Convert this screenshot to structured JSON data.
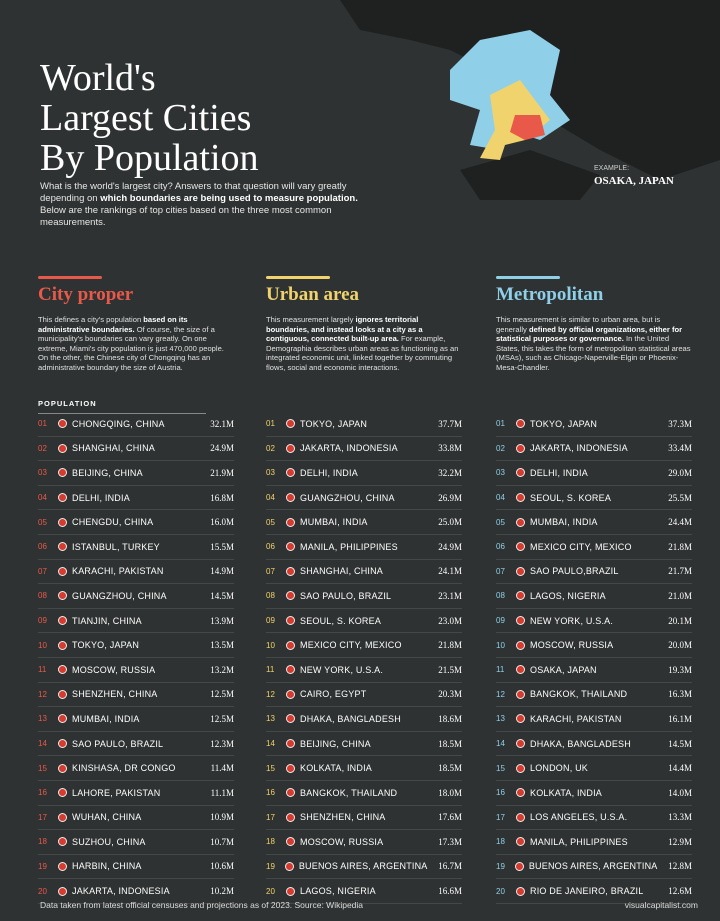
{
  "header": {
    "title_lines": [
      "World's",
      "Largest Cities",
      "By Population"
    ],
    "intro": [
      {
        "text": "What is the world's largest city? Answers to that question will vary greatly depending on "
      },
      {
        "text": "which boundaries are being used to measure population.",
        "strong": true
      },
      {
        "text": " Below are the rankings of top cities based on the three most common measurements."
      }
    ]
  },
  "map": {
    "label": "EXAMPLE:",
    "place": "OSAKA, JAPAN"
  },
  "columns": [
    {
      "title": "City proper",
      "color": "#e8594a",
      "column_label": "POPULATION",
      "description": [
        {
          "text": "This defines a city's population "
        },
        {
          "text": "based on its administrative boundaries.",
          "strong": true
        },
        {
          "text": " Of course, the size of a municipality's boundaries can vary greatly. On one extreme, Miami's city population is just 470,000 people. On the other, the Chinese city of Chongqing has an administrative boundary the size of Austria."
        }
      ],
      "rows": [
        [
          "01",
          "CHONGQING, CHINA",
          "32.1M"
        ],
        [
          "02",
          "SHANGHAI, CHINA",
          "24.9M"
        ],
        [
          "03",
          "BEIJING, CHINA",
          "21.9M"
        ],
        [
          "04",
          "DELHI, INDIA",
          "16.8M"
        ],
        [
          "05",
          "CHENGDU, CHINA",
          "16.0M"
        ],
        [
          "06",
          "ISTANBUL, TURKEY",
          "15.5M"
        ],
        [
          "07",
          "KARACHI, PAKISTAN",
          "14.9M"
        ],
        [
          "08",
          "GUANGZHOU, CHINA",
          "14.5M"
        ],
        [
          "09",
          "TIANJIN, CHINA",
          "13.9M"
        ],
        [
          "10",
          "TOKYO, JAPAN",
          "13.5M"
        ],
        [
          "11",
          "MOSCOW, RUSSIA",
          "13.2M"
        ],
        [
          "12",
          "SHENZHEN, CHINA",
          "12.5M"
        ],
        [
          "13",
          "MUMBAI, INDIA",
          "12.5M"
        ],
        [
          "14",
          "SAO PAULO, BRAZIL",
          "12.3M"
        ],
        [
          "15",
          "KINSHASA, DR CONGO",
          "11.4M"
        ],
        [
          "16",
          "LAHORE, PAKISTAN",
          "11.1M"
        ],
        [
          "17",
          "WUHAN, CHINA",
          "10.9M"
        ],
        [
          "18",
          "SUZHOU, CHINA",
          "10.7M"
        ],
        [
          "19",
          "HARBIN, CHINA",
          "10.6M"
        ],
        [
          "20",
          "JAKARTA, INDONESIA",
          "10.2M"
        ]
      ]
    },
    {
      "title": "Urban area",
      "color": "#f0d36c",
      "description": [
        {
          "text": "This measurement largely "
        },
        {
          "text": "ignores territorial boundaries, and instead looks at a city as a contiguous, connected built-up area.",
          "strong": true
        },
        {
          "text": " For example, Demographia describes urban areas as functioning as an integrated economic unit, linked together by commuting flows, social and economic interactions."
        }
      ],
      "rows": [
        [
          "01",
          "TOKYO, JAPAN",
          "37.7M"
        ],
        [
          "02",
          "JAKARTA, INDONESIA",
          "33.8M"
        ],
        [
          "03",
          "DELHI, INDIA",
          "32.2M"
        ],
        [
          "04",
          "GUANGZHOU, CHINA",
          "26.9M"
        ],
        [
          "05",
          "MUMBAI, INDIA",
          "25.0M"
        ],
        [
          "06",
          "MANILA, PHILIPPINES",
          "24.9M"
        ],
        [
          "07",
          "SHANGHAI, CHINA",
          "24.1M"
        ],
        [
          "08",
          "SAO PAULO, BRAZIL",
          "23.1M"
        ],
        [
          "09",
          "SEOUL, S. KOREA",
          "23.0M"
        ],
        [
          "10",
          "MEXICO CITY, MEXICO",
          "21.8M"
        ],
        [
          "11",
          "NEW YORK, U.S.A.",
          "21.5M"
        ],
        [
          "12",
          "CAIRO, EGYPT",
          "20.3M"
        ],
        [
          "13",
          "DHAKA, BANGLADESH",
          "18.6M"
        ],
        [
          "14",
          "BEIJING, CHINA",
          "18.5M"
        ],
        [
          "15",
          "KOLKATA, INDIA",
          "18.5M"
        ],
        [
          "16",
          "BANGKOK, THAILAND",
          "18.0M"
        ],
        [
          "17",
          "SHENZHEN, CHINA",
          "17.6M"
        ],
        [
          "18",
          "MOSCOW, RUSSIA",
          "17.3M"
        ],
        [
          "19",
          "BUENOS AIRES, ARGENTINA",
          "16.7M"
        ],
        [
          "20",
          "LAGOS, NIGERIA",
          "16.6M"
        ]
      ]
    },
    {
      "title": "Metropolitan",
      "color": "#8fd0e8",
      "description": [
        {
          "text": "This measurement is similar to urban area, but is generally "
        },
        {
          "text": "defined by official organizations, either for statistical purposes or governance.",
          "strong": true
        },
        {
          "text": " In the United States, this takes the form of metropolitan statistical areas (MSAs), such as Chicago-Naperville-Elgin or Phoenix-Mesa-Chandler."
        }
      ],
      "rows": [
        [
          "01",
          "TOKYO, JAPAN",
          "37.3M"
        ],
        [
          "02",
          "JAKARTA, INDONESIA",
          "33.4M"
        ],
        [
          "03",
          "DELHI, INDIA",
          "29.0M"
        ],
        [
          "04",
          "SEOUL, S. KOREA",
          "25.5M"
        ],
        [
          "05",
          "MUMBAI, INDIA",
          "24.4M"
        ],
        [
          "06",
          "MEXICO CITY, MEXICO",
          "21.8M"
        ],
        [
          "07",
          "SAO PAULO,BRAZIL",
          "21.7M"
        ],
        [
          "08",
          "LAGOS, NIGERIA",
          "21.0M"
        ],
        [
          "09",
          "NEW YORK, U.S.A.",
          "20.1M"
        ],
        [
          "10",
          "MOSCOW, RUSSIA",
          "20.0M"
        ],
        [
          "11",
          "OSAKA, JAPAN",
          "19.3M"
        ],
        [
          "12",
          "BANGKOK, THAILAND",
          "16.3M"
        ],
        [
          "13",
          "KARACHI, PAKISTAN",
          "16.1M"
        ],
        [
          "14",
          "DHAKA, BANGLADESH",
          "14.5M"
        ],
        [
          "15",
          "LONDON, UK",
          "14.4M"
        ],
        [
          "16",
          "KOLKATA, INDIA",
          "14.0M"
        ],
        [
          "17",
          "LOS ANGELES, U.S.A.",
          "13.3M"
        ],
        [
          "18",
          "MANILA, PHILIPPINES",
          "12.9M"
        ],
        [
          "19",
          "BUENOS AIRES, ARGENTINA",
          "12.8M"
        ],
        [
          "20",
          "RIO DE JANEIRO, BRAZIL",
          "12.6M"
        ]
      ]
    }
  ],
  "footer": {
    "source": "Data taken from latest official censuses and projections as of 2023. Source: Wikipedia",
    "brand": "visualcapitalist.com"
  }
}
